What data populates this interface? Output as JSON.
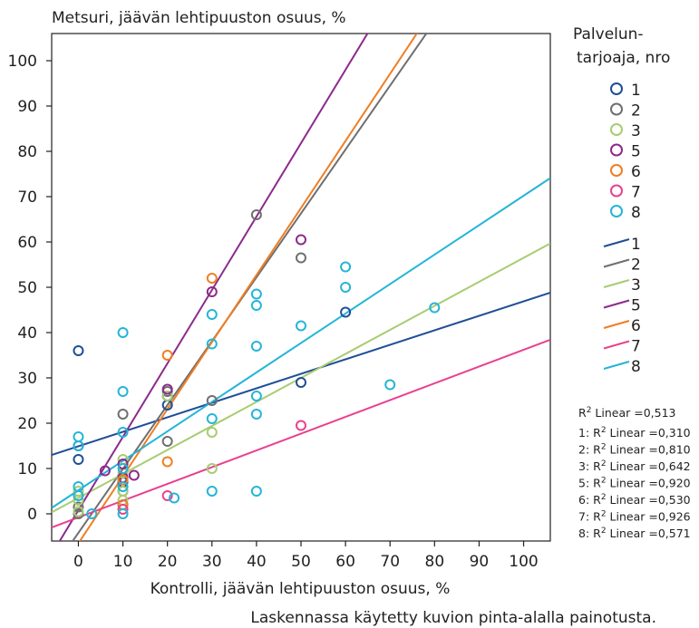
{
  "chart_data": {
    "type": "scatter",
    "title": "Metsuri, jäävän lehtipuuston osuus, %",
    "xlabel": "Kontrolli, jäävän lehtipuuston osuus, %",
    "ylabel": "Metsuri, jäävän lehtipuuston osuus, %",
    "footnote": "Laskennassa käytetty kuvion pinta-alalla painotusta.",
    "xlim": [
      -6,
      106
    ],
    "ylim": [
      -6,
      106
    ],
    "x_ticks": [
      "0",
      "10",
      "20",
      "30",
      "40",
      "50",
      "60",
      "70",
      "80",
      "90",
      "100"
    ],
    "y_ticks": [
      "0",
      "10",
      "20",
      "30",
      "40",
      "50",
      "60",
      "70",
      "80",
      "90",
      "100"
    ],
    "grid": false,
    "legend": {
      "title_line1": "Palvelun-",
      "title_line2": "tarjoaja, nro",
      "placement": "right"
    },
    "r2_total": "Linear =0,513",
    "series": [
      {
        "name": "1",
        "color": "#1f4e96",
        "r2": "Linear =0,310",
        "fit": {
          "slope": 0.32,
          "intercept": 14.9
        },
        "points": [
          [
            0,
            36
          ],
          [
            0,
            12
          ],
          [
            0,
            15
          ],
          [
            10,
            7
          ],
          [
            10,
            5
          ],
          [
            10,
            2
          ],
          [
            20,
            24
          ],
          [
            20,
            26
          ],
          [
            50,
            29
          ],
          [
            60,
            44.5
          ]
        ]
      },
      {
        "name": "2",
        "color": "#6f6f6f",
        "r2": "Linear =0,810",
        "fit": {
          "slope": 1.41,
          "intercept": -4.2
        },
        "points": [
          [
            0,
            0
          ],
          [
            0,
            1.5
          ],
          [
            10,
            22
          ],
          [
            20,
            16
          ],
          [
            30,
            25
          ],
          [
            40,
            66
          ],
          [
            50,
            56.5
          ],
          [
            20,
            27
          ]
        ]
      },
      {
        "name": "3",
        "color": "#a8cc72",
        "r2": "Linear =0,642",
        "fit": {
          "slope": 0.53,
          "intercept": 3.5
        },
        "points": [
          [
            0,
            3
          ],
          [
            0,
            5
          ],
          [
            10,
            3
          ],
          [
            10,
            5
          ],
          [
            10,
            9
          ],
          [
            20,
            26
          ],
          [
            30,
            18
          ],
          [
            30,
            10
          ],
          [
            10,
            12
          ],
          [
            0,
            0.5
          ]
        ]
      },
      {
        "name": "5",
        "color": "#8c2a8c",
        "r2": "Linear =0,920",
        "fit": {
          "slope": 1.62,
          "intercept": 0.8
        },
        "points": [
          [
            6,
            9.5
          ],
          [
            12.5,
            8.5
          ],
          [
            20,
            27.5
          ],
          [
            30,
            49
          ],
          [
            50,
            60.5
          ],
          [
            10,
            8
          ],
          [
            10,
            11
          ]
        ]
      },
      {
        "name": "6",
        "color": "#ef7e23",
        "r2": "Linear =0,530",
        "fit": {
          "slope": 1.48,
          "intercept": -6.5
        },
        "points": [
          [
            20,
            35
          ],
          [
            20,
            11.5
          ],
          [
            30,
            52
          ],
          [
            10,
            7.5
          ],
          [
            10,
            2
          ]
        ]
      },
      {
        "name": "7",
        "color": "#e8418e",
        "r2": "Linear =0,926",
        "fit": {
          "slope": 0.37,
          "intercept": -0.8
        },
        "points": [
          [
            20,
            4
          ],
          [
            50,
            19.5
          ],
          [
            10,
            1
          ]
        ]
      },
      {
        "name": "8",
        "color": "#24b5d8",
        "r2": "Linear =0,571",
        "fit": {
          "slope": 0.65,
          "intercept": 5.2
        },
        "points": [
          [
            0,
            17
          ],
          [
            0,
            15
          ],
          [
            0,
            6
          ],
          [
            0,
            4
          ],
          [
            3,
            0
          ],
          [
            10,
            40
          ],
          [
            10,
            27
          ],
          [
            10,
            18
          ],
          [
            10,
            10
          ],
          [
            10,
            6
          ],
          [
            10,
            0
          ],
          [
            21.5,
            3.5
          ],
          [
            30,
            44
          ],
          [
            30,
            37.5
          ],
          [
            30,
            21
          ],
          [
            30,
            5
          ],
          [
            40,
            48.5
          ],
          [
            40,
            46
          ],
          [
            40,
            37
          ],
          [
            40,
            26
          ],
          [
            40,
            22
          ],
          [
            40,
            5
          ],
          [
            50,
            41.5
          ],
          [
            60,
            54.5
          ],
          [
            60,
            50
          ],
          [
            70,
            28.5
          ],
          [
            80,
            45.5
          ]
        ]
      }
    ]
  }
}
